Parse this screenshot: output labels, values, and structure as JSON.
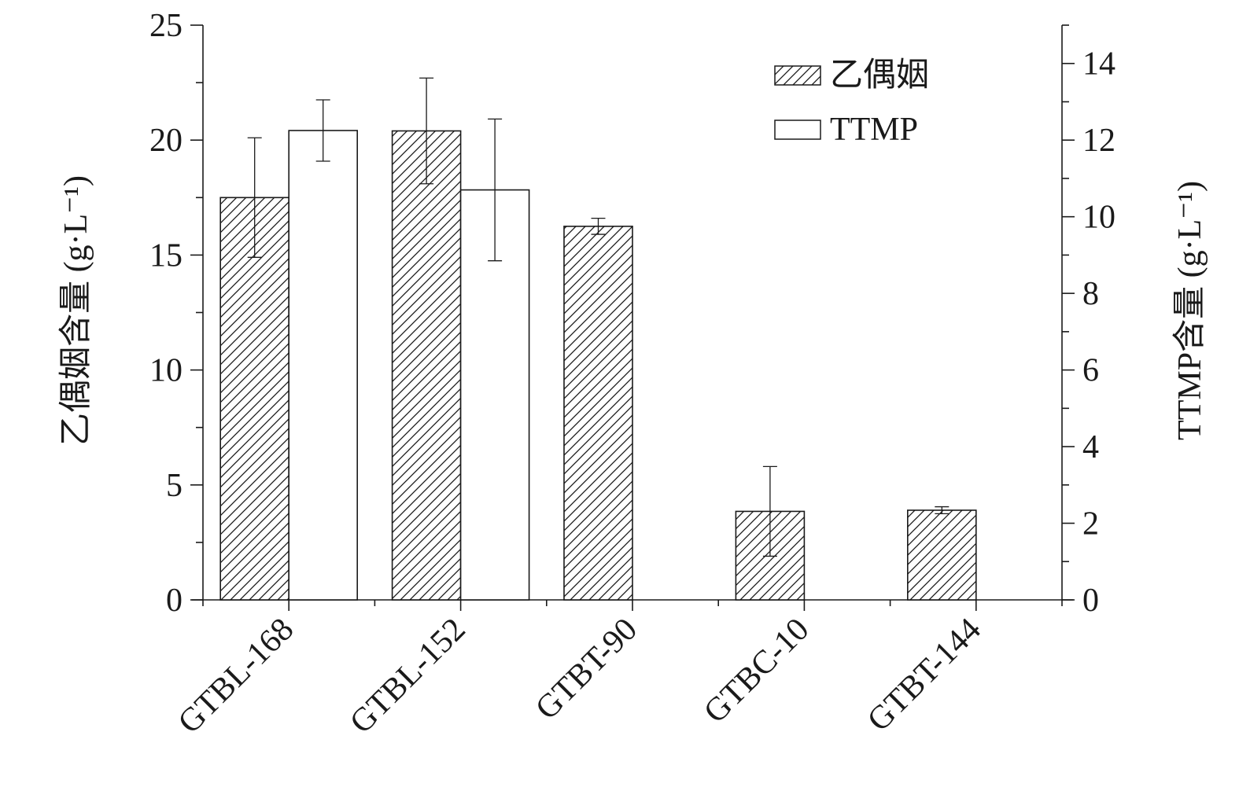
{
  "chart_data": {
    "type": "bar",
    "categories": [
      "GTBL-168",
      "GTBL-152",
      "GTBT-90",
      "GTBC-10",
      "GTBT-144"
    ],
    "left_axis": {
      "label": "乙偶姻含量 (g·L⁻¹)",
      "ylim": [
        0,
        25
      ],
      "ticks": [
        0,
        5,
        10,
        15,
        20,
        25
      ],
      "minor_step": 2.5
    },
    "right_axis": {
      "label": "TTMP含量 (g·L⁻¹)",
      "ylim": [
        0,
        15
      ],
      "ticks": [
        0,
        2,
        4,
        6,
        8,
        10,
        12,
        14
      ],
      "minor_step": 1
    },
    "series": [
      {
        "name": "乙偶姻",
        "axis": "left",
        "pattern": "hatched",
        "values": [
          17.5,
          20.4,
          16.25,
          3.85,
          3.9
        ],
        "errors": [
          2.6,
          2.3,
          0.35,
          1.95,
          0.15
        ]
      },
      {
        "name": "TTMP",
        "axis": "right",
        "pattern": "open",
        "values": [
          12.25,
          10.7,
          null,
          null,
          null
        ],
        "errors": [
          0.8,
          1.85,
          null,
          null,
          null
        ]
      }
    ],
    "legend": {
      "position": "top-right"
    },
    "grid": false
  }
}
